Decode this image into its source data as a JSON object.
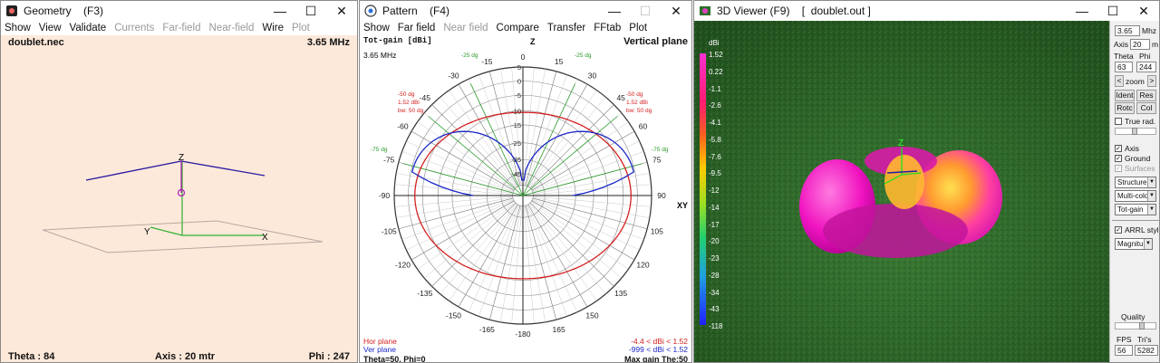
{
  "geometry": {
    "title": "Geometry    (F3)",
    "menu": [
      "Show",
      "View",
      "Validate",
      "Currents",
      "Far-field",
      "Near-field",
      "Wire",
      "Plot"
    ],
    "menu_disabled": [
      false,
      false,
      false,
      true,
      true,
      true,
      false,
      true
    ],
    "filename": "doublet.nec",
    "freq": "3.65 MHz",
    "theta": "Theta : 84",
    "axis": "Axis : 20 mtr",
    "phi": "Phi : 247",
    "axis_labels": {
      "z": "Z",
      "y": "Y",
      "x": "X"
    }
  },
  "pattern": {
    "title": "Pattern    (F4)",
    "menu": [
      "Show",
      "Far field",
      "Near field",
      "Compare",
      "Transfer",
      "FFtab",
      "Plot"
    ],
    "menu_disabled": [
      false,
      false,
      true,
      false,
      false,
      false,
      false
    ],
    "gain_label": "Tot-gain [dBi]",
    "plane_label": "Vertical plane",
    "freq": "3.65 MHz",
    "angle_labels": [
      "0",
      "15",
      "30",
      "45",
      "60",
      "75",
      "90",
      "105",
      "120",
      "135",
      "150",
      "165",
      "-180",
      "-165",
      "-150",
      "-135",
      "-120",
      "-105",
      "-90",
      "-75",
      "-60",
      "-45",
      "-30",
      "-15"
    ],
    "ring_labels": [
      "5",
      "0",
      "-5",
      "-10",
      "-15",
      "-25",
      "-35",
      "-45"
    ],
    "annot_left": [
      "-50 dg",
      "1.52 dBi",
      "bw: 50 dg"
    ],
    "annot_right": [
      "-50 dg",
      "1.52 dBi",
      "bw: 50 dg"
    ],
    "dg_labels": [
      "-25 dg",
      "-25 dg",
      "-75 dg",
      "-75 dg"
    ],
    "xy_label": "XY",
    "z_label": "Z",
    "hor_plane": "Hor plane",
    "ver_plane": "Ver plane",
    "hor_range": "-4.4 < dBi < 1.52",
    "ver_range": "-999 < dBi < 1.52",
    "theta_phi": "Theta=50, Phi=0",
    "max_gain": "Max gain The:50",
    "colors": {
      "hor": "#d42020",
      "ver": "#1a28c8"
    }
  },
  "viewer": {
    "title": "3D Viewer (F9)    [  doublet.out ]",
    "dbi_label": "dBi",
    "scale": [
      "1.52",
      "0.22",
      "-1.1",
      "-2.6",
      "-4.1",
      "-5.8",
      "-7.6",
      "-9.5",
      "-12",
      "-14",
      "-17",
      "-20",
      "-23",
      "-28",
      "-34",
      "-43",
      "-118"
    ],
    "z_label": "Z",
    "panel": {
      "freq_value": "3.65",
      "freq_unit": "Mhz",
      "axis_label": "Axis",
      "axis_value": "20",
      "axis_unit": "m",
      "theta_label": "Theta",
      "phi_label": "Phi",
      "theta_value": "63",
      "phi_value": "244",
      "zoom_label": "zoom",
      "zoom_left": "<",
      "zoom_right": ">",
      "btn_ident": "Ident",
      "btn_res": "Res",
      "btn_rotc": "Rotc",
      "btn_col": "Col",
      "true_rad": "True rad.",
      "axis_chk": "Axis",
      "ground_chk": "Ground",
      "surfaces_chk": "Surfaces",
      "sel1": "Structure",
      "sel2": "Multi-colo",
      "sel3": "Tot-gain",
      "arrl": "ARRL style",
      "sel4": "Magnitu",
      "quality": "Quality",
      "fps_label": "FPS",
      "tris_label": "Tri's",
      "fps_value": "56",
      "tris_value": "5282"
    }
  },
  "window_controls": [
    "—",
    "☐",
    "✕"
  ]
}
